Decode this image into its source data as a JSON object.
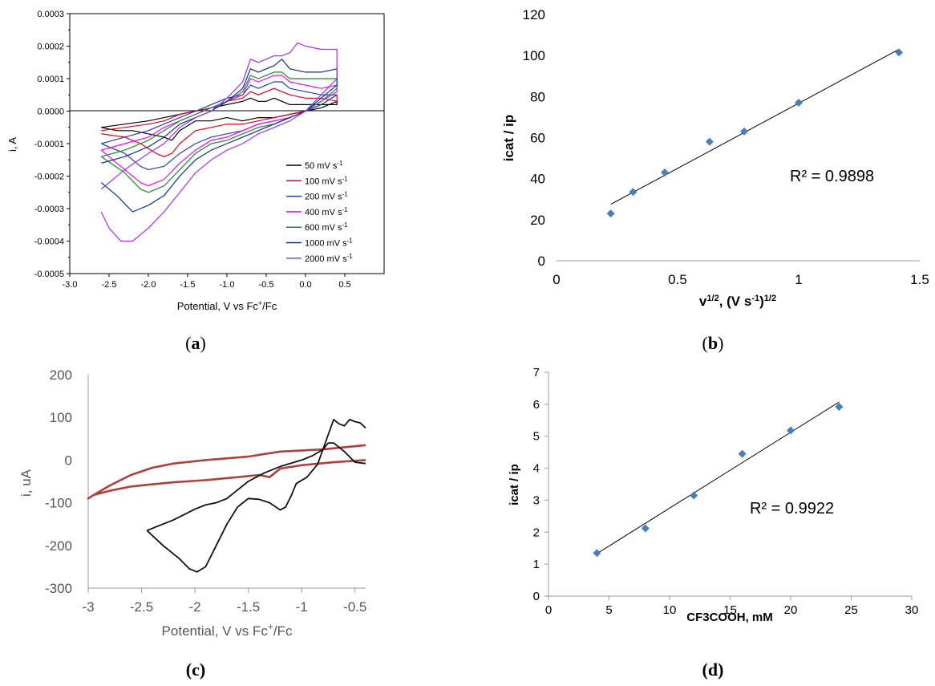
{
  "captions": {
    "a": [
      "(",
      "a",
      ")"
    ],
    "b": [
      "(",
      "b",
      ")"
    ],
    "c": "(c)",
    "d": "(d)"
  },
  "chart_data": [
    {
      "id": "a",
      "type": "line",
      "xlabel": "Potential, V vs Fc+/Fc",
      "xlabel_parts": [
        "Potential, V vs Fc",
        "+",
        "/Fc"
      ],
      "ylabel": "i, A",
      "xlim": [
        -3.0,
        1.0
      ],
      "ylim": [
        -0.0005,
        0.0003
      ],
      "xticks": [
        -3.0,
        -2.5,
        -2.0,
        -1.5,
        -1.0,
        -0.5,
        0.0,
        0.5
      ],
      "xtick_labels": [
        "-3.0",
        "-2.5",
        "-2.0",
        "-1.5",
        "-1.0",
        "-0.5",
        "0.0",
        "0.5"
      ],
      "yticks": [
        -0.0005,
        -0.0004,
        -0.0003,
        -0.0002,
        -0.0001,
        0.0,
        0.0001,
        0.0002,
        0.0003
      ],
      "ytick_labels": [
        "-0.0005",
        "-0.0004",
        "-0.0003",
        "-0.0002",
        "-0.0001",
        "0.0000",
        "0.0001",
        "0.0002",
        "0.0003"
      ],
      "legend_position": "lower-right",
      "series": [
        {
          "name": "50 mV s-1",
          "label": "50 mV s",
          "sup": "-1",
          "color": "#000000",
          "fwd_x": [
            -2.6,
            -2.3,
            -2.0,
            -1.8,
            -1.6,
            -1.4,
            -1.2,
            -1.0,
            -0.8,
            -0.7,
            -0.6,
            -0.5,
            -0.4,
            -0.3,
            -0.2,
            0.0,
            0.2,
            0.4
          ],
          "fwd_y": [
            -5e-05,
            -4e-05,
            -3e-05,
            -2e-05,
            -1e-05,
            0.0,
            1e-05,
            2e-05,
            3e-05,
            4e-05,
            3e-05,
            3e-05,
            4e-05,
            3e-05,
            2e-05,
            2e-05,
            2e-05,
            2e-05
          ],
          "rev_x": [
            0.4,
            0.2,
            0.0,
            -0.2,
            -0.4,
            -0.6,
            -0.8,
            -1.0,
            -1.2,
            -1.4,
            -1.6,
            -1.7,
            -1.8,
            -2.0,
            -2.2,
            -2.4,
            -2.6
          ],
          "rev_y": [
            3e-05,
            1e-05,
            0.0,
            -1e-05,
            -2e-05,
            -2e-05,
            -3e-05,
            -2e-05,
            -3e-05,
            -3e-05,
            -6e-05,
            -9e-05,
            -8e-05,
            -7e-05,
            -6e-05,
            -6e-05,
            -5e-05
          ]
        },
        {
          "name": "100 mV s-1",
          "label": "100 mV s",
          "sup": "-1",
          "color": "#e8001a",
          "fwd_x": [
            -2.6,
            -2.3,
            -2.0,
            -1.8,
            -1.6,
            -1.4,
            -1.2,
            -1.0,
            -0.8,
            -0.7,
            -0.6,
            -0.5,
            -0.4,
            -0.3,
            -0.2,
            0.0,
            0.2,
            0.4
          ],
          "fwd_y": [
            -6e-05,
            -5e-05,
            -4e-05,
            -3e-05,
            -1e-05,
            0.0,
            1e-05,
            3e-05,
            4e-05,
            6e-05,
            5e-05,
            6e-05,
            7e-05,
            6e-05,
            5e-05,
            4e-05,
            4e-05,
            3e-05
          ],
          "rev_x": [
            0.4,
            0.2,
            0.0,
            -0.2,
            -0.4,
            -0.6,
            -0.8,
            -1.0,
            -1.2,
            -1.4,
            -1.6,
            -1.7,
            -1.8,
            -1.9,
            -2.1,
            -2.3,
            -2.6
          ],
          "rev_y": [
            5e-05,
            2e-05,
            0.0,
            -1e-05,
            -2e-05,
            -3e-05,
            -4e-05,
            -4e-05,
            -5e-05,
            -6e-05,
            -0.0001,
            -0.00013,
            -0.00014,
            -0.00013,
            -0.0001,
            -8e-05,
            -7e-05
          ]
        },
        {
          "name": "200 mV s-1",
          "label": "200 mV s",
          "sup": "-1",
          "color": "#1f3fbf",
          "fwd_x": [
            -2.6,
            -2.3,
            -2.0,
            -1.8,
            -1.6,
            -1.4,
            -1.2,
            -1.0,
            -0.8,
            -0.7,
            -0.6,
            -0.5,
            -0.4,
            -0.3,
            -0.2,
            0.0,
            0.2,
            0.4
          ],
          "fwd_y": [
            -0.0001,
            -8e-05,
            -6e-05,
            -4e-05,
            -2e-05,
            0.0,
            2e-05,
            4e-05,
            5e-05,
            8e-05,
            7e-05,
            8e-05,
            9e-05,
            9e-05,
            7e-05,
            6e-05,
            5e-05,
            5e-05
          ],
          "rev_x": [
            0.4,
            0.2,
            0.0,
            -0.2,
            -0.4,
            -0.6,
            -0.8,
            -1.0,
            -1.2,
            -1.4,
            -1.6,
            -1.8,
            -2.0,
            -2.1,
            -2.3,
            -2.6
          ],
          "rev_y": [
            5e-05,
            2e-05,
            0.0,
            -2e-05,
            -3e-05,
            -4e-05,
            -6e-05,
            -7e-05,
            -8e-05,
            -0.0001,
            -0.00013,
            -0.00017,
            -0.00018,
            -0.00017,
            -0.00013,
            -0.0001
          ]
        },
        {
          "name": "400 mV s-1",
          "label": "400 mV s",
          "sup": "-1",
          "color": "#ff00ff",
          "fwd_x": [
            -2.6,
            -2.3,
            -2.0,
            -1.8,
            -1.6,
            -1.4,
            -1.2,
            -1.0,
            -0.8,
            -0.7,
            -0.6,
            -0.5,
            -0.4,
            -0.3,
            -0.2,
            0.0,
            0.2,
            0.4
          ],
          "fwd_y": [
            -0.00012,
            -0.0001,
            -8e-05,
            -5e-05,
            -3e-05,
            -1e-05,
            1e-05,
            3e-05,
            5e-05,
            0.0001,
            9e-05,
            0.0001,
            0.00011,
            0.00011,
            9e-05,
            8e-05,
            7e-05,
            8e-05
          ],
          "rev_x": [
            0.4,
            0.2,
            0.0,
            -0.2,
            -0.4,
            -0.6,
            -0.8,
            -1.0,
            -1.2,
            -1.4,
            -1.6,
            -1.8,
            -2.0,
            -2.1,
            -2.3,
            -2.6
          ],
          "rev_y": [
            6e-05,
            3e-05,
            0.0,
            -2e-05,
            -3e-05,
            -4e-05,
            -6e-05,
            -8e-05,
            -9e-05,
            -0.00012,
            -0.00016,
            -0.00021,
            -0.00023,
            -0.00022,
            -0.00018,
            -0.00012
          ]
        },
        {
          "name": "600 mV s-1",
          "label": "600 mV s",
          "sup": "-1",
          "color": "#1e8a2c",
          "fwd_x": [
            -2.6,
            -2.3,
            -2.0,
            -1.8,
            -1.6,
            -1.4,
            -1.2,
            -1.0,
            -0.8,
            -0.7,
            -0.6,
            -0.5,
            -0.4,
            -0.3,
            -0.2,
            0.0,
            0.2,
            0.4
          ],
          "fwd_y": [
            -0.00014,
            -0.00012,
            -9e-05,
            -6e-05,
            -3e-05,
            -1e-05,
            1e-05,
            3e-05,
            6e-05,
            0.00011,
            0.0001,
            0.00011,
            0.00012,
            0.00012,
            0.0001,
            0.0001,
            0.0001,
            0.0001
          ],
          "rev_x": [
            0.4,
            0.2,
            0.0,
            -0.2,
            -0.4,
            -0.6,
            -0.8,
            -1.0,
            -1.2,
            -1.4,
            -1.6,
            -1.8,
            -2.0,
            -2.1,
            -2.3,
            -2.6
          ],
          "rev_y": [
            7e-05,
            3e-05,
            0.0,
            -2e-05,
            -4e-05,
            -5e-05,
            -7e-05,
            -9e-05,
            -0.0001,
            -0.00013,
            -0.00018,
            -0.00023,
            -0.00025,
            -0.00024,
            -0.00019,
            -0.00014
          ]
        },
        {
          "name": "1000 mV s-1",
          "label": "1000 mV s",
          "sup": "-1",
          "color": "#0d2c8f",
          "fwd_x": [
            -2.6,
            -2.3,
            -2.0,
            -1.8,
            -1.6,
            -1.4,
            -1.2,
            -1.0,
            -0.8,
            -0.7,
            -0.6,
            -0.5,
            -0.4,
            -0.3,
            -0.2,
            0.0,
            0.2,
            0.4
          ],
          "fwd_y": [
            -0.00016,
            -0.00014,
            -0.00011,
            -8e-05,
            -4e-05,
            -2e-05,
            0.0,
            3e-05,
            7e-05,
            0.00013,
            0.00012,
            0.00013,
            0.00014,
            0.00016,
            0.00013,
            0.00012,
            0.00012,
            0.00013
          ],
          "rev_x": [
            0.4,
            0.2,
            0.0,
            -0.2,
            -0.4,
            -0.6,
            -0.8,
            -1.0,
            -1.2,
            -1.4,
            -1.6,
            -1.8,
            -2.0,
            -2.2,
            -2.4,
            -2.6
          ],
          "rev_y": [
            8e-05,
            4e-05,
            0.0,
            -2e-05,
            -4e-05,
            -6e-05,
            -8e-05,
            -0.0001,
            -0.00012,
            -0.00015,
            -0.0002,
            -0.00026,
            -0.00029,
            -0.00031,
            -0.00026,
            -0.00022
          ]
        },
        {
          "name": "2000 mV s-1",
          "label": "2000 mV s",
          "sup": "-1",
          "color": "#9b30ff",
          "fwd_x": [
            -2.6,
            -2.3,
            -2.0,
            -1.8,
            -1.6,
            -1.4,
            -1.2,
            -1.0,
            -0.8,
            -0.7,
            -0.6,
            -0.5,
            -0.4,
            -0.3,
            -0.2,
            -0.1,
            0.0,
            0.2,
            0.4
          ],
          "fwd_y": [
            -0.00024,
            -0.00018,
            -0.00013,
            -0.0001,
            -5e-05,
            -2e-05,
            0.0,
            4e-05,
            9e-05,
            0.00016,
            0.00015,
            0.00016,
            0.00017,
            0.00017,
            0.00018,
            0.00021,
            0.0002,
            0.00019,
            0.00019
          ],
          "rev_x": [
            0.4,
            0.2,
            0.0,
            -0.2,
            -0.4,
            -0.6,
            -0.8,
            -1.0,
            -1.2,
            -1.4,
            -1.6,
            -1.8,
            -2.0,
            -2.2,
            -2.35,
            -2.5,
            -2.6
          ],
          "rev_y": [
            0.0001,
            5e-05,
            0.0,
            -3e-05,
            -5e-05,
            -7e-05,
            -0.0001,
            -0.00012,
            -0.00015,
            -0.00019,
            -0.00025,
            -0.00031,
            -0.00036,
            -0.0004,
            -0.0004,
            -0.00036,
            -0.00031
          ]
        }
      ]
    },
    {
      "id": "b",
      "type": "scatter",
      "xlabel": "v1/2, (V s-1)1/2",
      "xlabel_parts": [
        "v",
        "1/2",
        ", (V s",
        "-1",
        ")",
        "1/2"
      ],
      "ylabel": "icat / ip",
      "xlim": [
        0,
        1.5
      ],
      "ylim": [
        0,
        120
      ],
      "xticks": [
        0,
        0.5,
        1,
        1.5
      ],
      "xtick_labels": [
        "0",
        "0.5",
        "1",
        "1.5"
      ],
      "yticks": [
        0,
        20,
        40,
        60,
        80,
        100,
        120
      ],
      "ytick_labels": [
        "0",
        "20",
        "40",
        "60",
        "80",
        "100",
        "120"
      ],
      "x": [
        0.224,
        0.316,
        0.447,
        0.632,
        0.775,
        1.0,
        1.414
      ],
      "y": [
        23,
        33.5,
        43,
        58,
        63,
        77,
        101.5
      ],
      "marker_color": "#4a7ebb",
      "trendline": {
        "x": [
          0.224,
          1.414
        ],
        "y": [
          27.5,
          103
        ]
      },
      "annotation": "R² = 0.9898"
    },
    {
      "id": "c",
      "type": "line",
      "xlabel": "Potential, V vs Fc+/Fc",
      "xlabel_parts": [
        "Potential, V vs Fc",
        "+",
        "/Fc"
      ],
      "ylabel": "i, uA",
      "xlim": [
        -3.0,
        -0.4
      ],
      "ylim": [
        -300,
        200
      ],
      "xticks": [
        -3.0,
        -2.5,
        -2.0,
        -1.5,
        -1.0,
        -0.5
      ],
      "xtick_labels": [
        "-3",
        "-2.5",
        "-2",
        "-1.5",
        "-1",
        "-0.5"
      ],
      "yticks": [
        -300,
        -200,
        -100,
        0,
        100,
        200
      ],
      "ytick_labels": [
        "-300",
        "-200",
        "-100",
        "0",
        "100",
        "200"
      ],
      "series": [
        {
          "color": "#b0403a",
          "x": [
            -0.4,
            -0.8,
            -1.2,
            -1.25,
            -1.5,
            -1.9,
            -2.2,
            -2.4,
            -2.6,
            -2.8,
            -2.95,
            -3.0,
            -2.95,
            -2.8,
            -2.6,
            -2.45,
            -2.2,
            -1.9,
            -1.6,
            -1.4,
            -1.3,
            -1.2,
            -1.0,
            -0.7,
            -0.4
          ],
          "y": [
            35,
            25,
            20,
            18,
            8,
            0,
            -8,
            -18,
            -35,
            -60,
            -82,
            -90,
            -82,
            -72,
            -62,
            -58,
            -52,
            -47,
            -40,
            -35,
            -40,
            -20,
            -12,
            -5,
            0
          ]
        },
        {
          "color": "#111111",
          "x": [
            -2.45,
            -2.3,
            -2.15,
            -2.05,
            -1.98,
            -1.9,
            -1.8,
            -1.7,
            -1.6,
            -1.5,
            -1.4,
            -1.3,
            -1.2,
            -1.15,
            -1.1,
            -1.05,
            -0.95,
            -0.85,
            -0.75,
            -0.7,
            -0.65,
            -0.6,
            -0.55,
            -0.5,
            -0.45,
            -0.4
          ],
          "y": [
            -165,
            -200,
            -230,
            -255,
            -262,
            -250,
            -200,
            -150,
            -110,
            -90,
            -92,
            -100,
            -117,
            -110,
            -85,
            -55,
            -40,
            -10,
            60,
            95,
            85,
            80,
            95,
            90,
            87,
            75
          ]
        },
        {
          "color": "#111111",
          "x": [
            -2.45,
            -2.2,
            -2.0,
            -1.9,
            -1.8,
            -1.7,
            -1.6,
            -1.5,
            -1.35,
            -1.2,
            -1.0,
            -0.9,
            -0.8,
            -0.75,
            -0.7,
            -0.6,
            -0.5,
            -0.4
          ],
          "y": [
            -165,
            -140,
            -115,
            -105,
            -100,
            -90,
            -70,
            -50,
            -30,
            -15,
            0,
            10,
            25,
            40,
            40,
            20,
            -5,
            -8
          ]
        }
      ]
    },
    {
      "id": "d",
      "type": "scatter",
      "xlabel": "CF3COOH, mM",
      "ylabel": "icat / ip",
      "xlim": [
        0,
        30
      ],
      "ylim": [
        0,
        7
      ],
      "xticks": [
        0,
        5,
        10,
        15,
        20,
        25,
        30
      ],
      "xtick_labels": [
        "0",
        "5",
        "10",
        "15",
        "20",
        "25",
        "30"
      ],
      "yticks": [
        0,
        1,
        2,
        3,
        4,
        5,
        6,
        7
      ],
      "ytick_labels": [
        "0",
        "1",
        "2",
        "3",
        "4",
        "5",
        "6",
        "7"
      ],
      "x": [
        4,
        8,
        12,
        16,
        20,
        24
      ],
      "y": [
        1.35,
        2.12,
        3.15,
        4.45,
        5.18,
        5.92
      ],
      "marker_color": "#4a7ebb",
      "trendline": {
        "x": [
          4,
          24
        ],
        "y": [
          1.33,
          6.07
        ]
      },
      "annotation": "R² = 0.9922"
    }
  ]
}
